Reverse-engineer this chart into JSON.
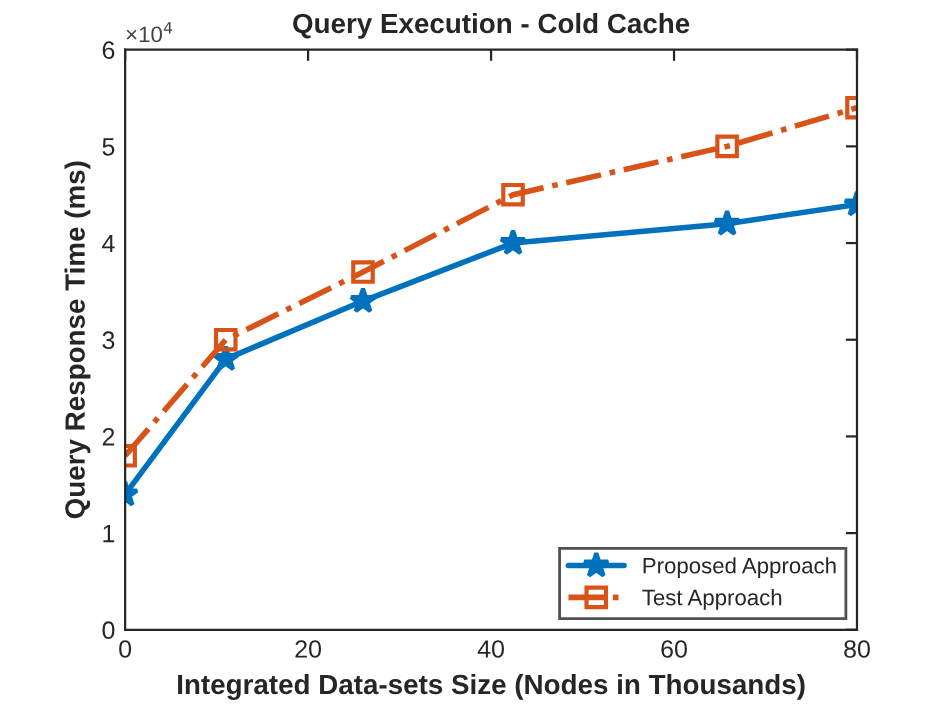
{
  "chart_data": {
    "type": "line",
    "title": "Query Execution - Cold Cache",
    "xlabel": "Integrated Data-sets Size (Nodes in Thousands)",
    "ylabel": "Query Response Time (ms)",
    "annotations": [
      "×10$^{4}$"
    ],
    "series": [
      {
        "name": "Proposed Approach",
        "color": "#0072bd",
        "marker": "star",
        "line_style": "solid",
        "x": [
          0,
          11,
          26,
          42.4,
          65.8,
          80
        ],
        "values": [
          1.4,
          2.8,
          3.4,
          4.0,
          4.2,
          4.4
        ]
      },
      {
        "name": "Test Approach",
        "color": "#d95319",
        "marker": "square",
        "line_style": "dashdot",
        "x": [
          0,
          11,
          26,
          42.4,
          65.8,
          80
        ],
        "values": [
          1.8,
          3.0,
          3.7,
          4.5,
          5.0,
          5.4
        ]
      }
    ],
    "xlim": [
      0,
      80
    ],
    "xticks": [
      0,
      20,
      40,
      60,
      80
    ],
    "ylim": [
      0,
      6
    ],
    "yticks": [
      0,
      1,
      2,
      3,
      4,
      5,
      6
    ],
    "grid": false,
    "legend": "bottom right"
  }
}
